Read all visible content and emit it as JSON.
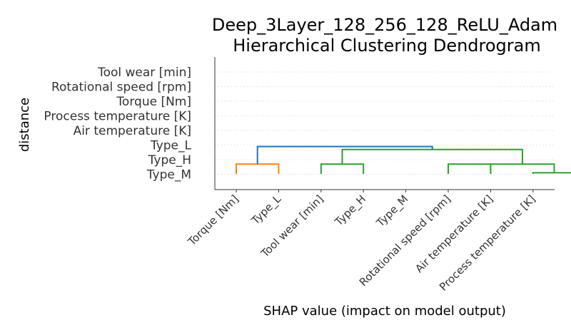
{
  "chart_data": {
    "type": "dendrogram",
    "title_line1": "Deep_3Layer_128_256_128_ReLU_Adam",
    "title_line2": "Hierarchical Clustering Dendrogram",
    "xlabel": "SHAP value (impact on model output)",
    "ylabel": "distance",
    "y_tick_labels": [
      "Tool wear [min]",
      "Rotational speed [rpm]",
      "Torque [Nm]",
      "Process temperature [K]",
      "Air temperature [K]",
      "Type_L",
      "Type_H",
      "Type_M"
    ],
    "leaves": [
      "Torque [Nm]",
      "Type_L",
      "Tool wear [min]",
      "Type_H",
      "Type_M",
      "Rotational speed [rpm]",
      "Air temperature [K]",
      "Process temperature [K]"
    ],
    "links": [
      {
        "left": [
          7,
          0
        ],
        "right": [
          8,
          0
        ],
        "top": 0.12,
        "color": "#2ca02c"
      },
      {
        "left": [
          0,
          0
        ],
        "right": [
          1,
          0
        ],
        "top": 1.0,
        "color": "#ff7f0e"
      },
      {
        "left": [
          2,
          0
        ],
        "right": [
          3,
          0
        ],
        "top": 1.0,
        "color": "#2ca02c"
      },
      {
        "left": [
          5,
          0
        ],
        "right": [
          6,
          0
        ],
        "top": 1.0,
        "color": "#2ca02c"
      },
      {
        "left": [
          6,
          0
        ],
        "right": [
          7.5,
          0.12
        ],
        "top": 1.0,
        "color": "#2ca02c"
      },
      {
        "left": [
          2.5,
          1.0
        ],
        "right": [
          6.75,
          1.0
        ],
        "top": 2.5,
        "color": "#2ca02c"
      },
      {
        "left": [
          0.5,
          1.0
        ],
        "right": [
          4.625,
          2.5
        ],
        "top": 2.8,
        "color": "#1f77b4"
      }
    ],
    "gridlines": "horizontal dotted",
    "ylim": [
      0,
      8.5
    ]
  }
}
